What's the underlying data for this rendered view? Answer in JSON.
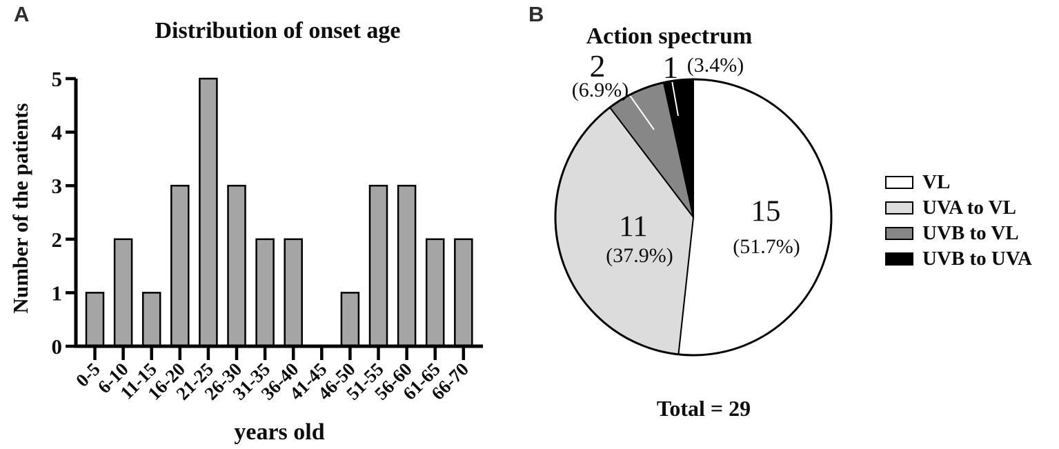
{
  "panels": {
    "a_label": "A",
    "b_label": "B"
  },
  "chart_data": [
    {
      "id": "onset-age-histogram",
      "panel": "A",
      "type": "bar",
      "title": "Distribution of onset age",
      "xlabel": "years old",
      "ylabel": "Number of the patients",
      "categories": [
        "0-5",
        "6-10",
        "11-15",
        "16-20",
        "21-25",
        "26-30",
        "31-35",
        "36-40",
        "41-45",
        "46-50",
        "51-55",
        "56-60",
        "61-65",
        "66-70"
      ],
      "values": [
        1,
        2,
        1,
        3,
        5,
        3,
        2,
        2,
        0,
        1,
        3,
        3,
        2,
        2
      ],
      "ylim": [
        0,
        5
      ],
      "yticks": [
        0,
        1,
        2,
        3,
        4,
        5
      ],
      "grid": false,
      "bar_fill": "#a5a5a5",
      "bar_stroke": "#000000",
      "axis_color": "#000000"
    },
    {
      "id": "action-spectrum-pie",
      "panel": "B",
      "type": "pie",
      "title": "Action spectrum",
      "total": 29,
      "total_label": "Total = 29",
      "start_angle": "12-oclock",
      "direction": "clockwise",
      "slices": [
        {
          "label": "VL",
          "value": 15,
          "pct": "(51.7%)",
          "color": "#ffffff",
          "label_placement": "inside"
        },
        {
          "label": "UVA to VL",
          "value": 11,
          "pct": "(37.9%)",
          "color": "#dcdcdc",
          "label_placement": "inside"
        },
        {
          "label": "UVB to VL",
          "value": 2,
          "pct": "(6.9%)",
          "color": "#878787",
          "label_placement": "outside"
        },
        {
          "label": "UVB to UVA",
          "value": 1,
          "pct": "(3.4%)",
          "color": "#000000",
          "label_placement": "outside"
        }
      ],
      "legend": [
        {
          "label": "VL",
          "color": "#ffffff"
        },
        {
          "label": "UVA to VL",
          "color": "#dcdcdc"
        },
        {
          "label": "UVB to VL",
          "color": "#878787"
        },
        {
          "label": "UVB to UVA",
          "color": "#000000"
        }
      ],
      "legend_position": "right",
      "outline_color": "#000000"
    }
  ]
}
